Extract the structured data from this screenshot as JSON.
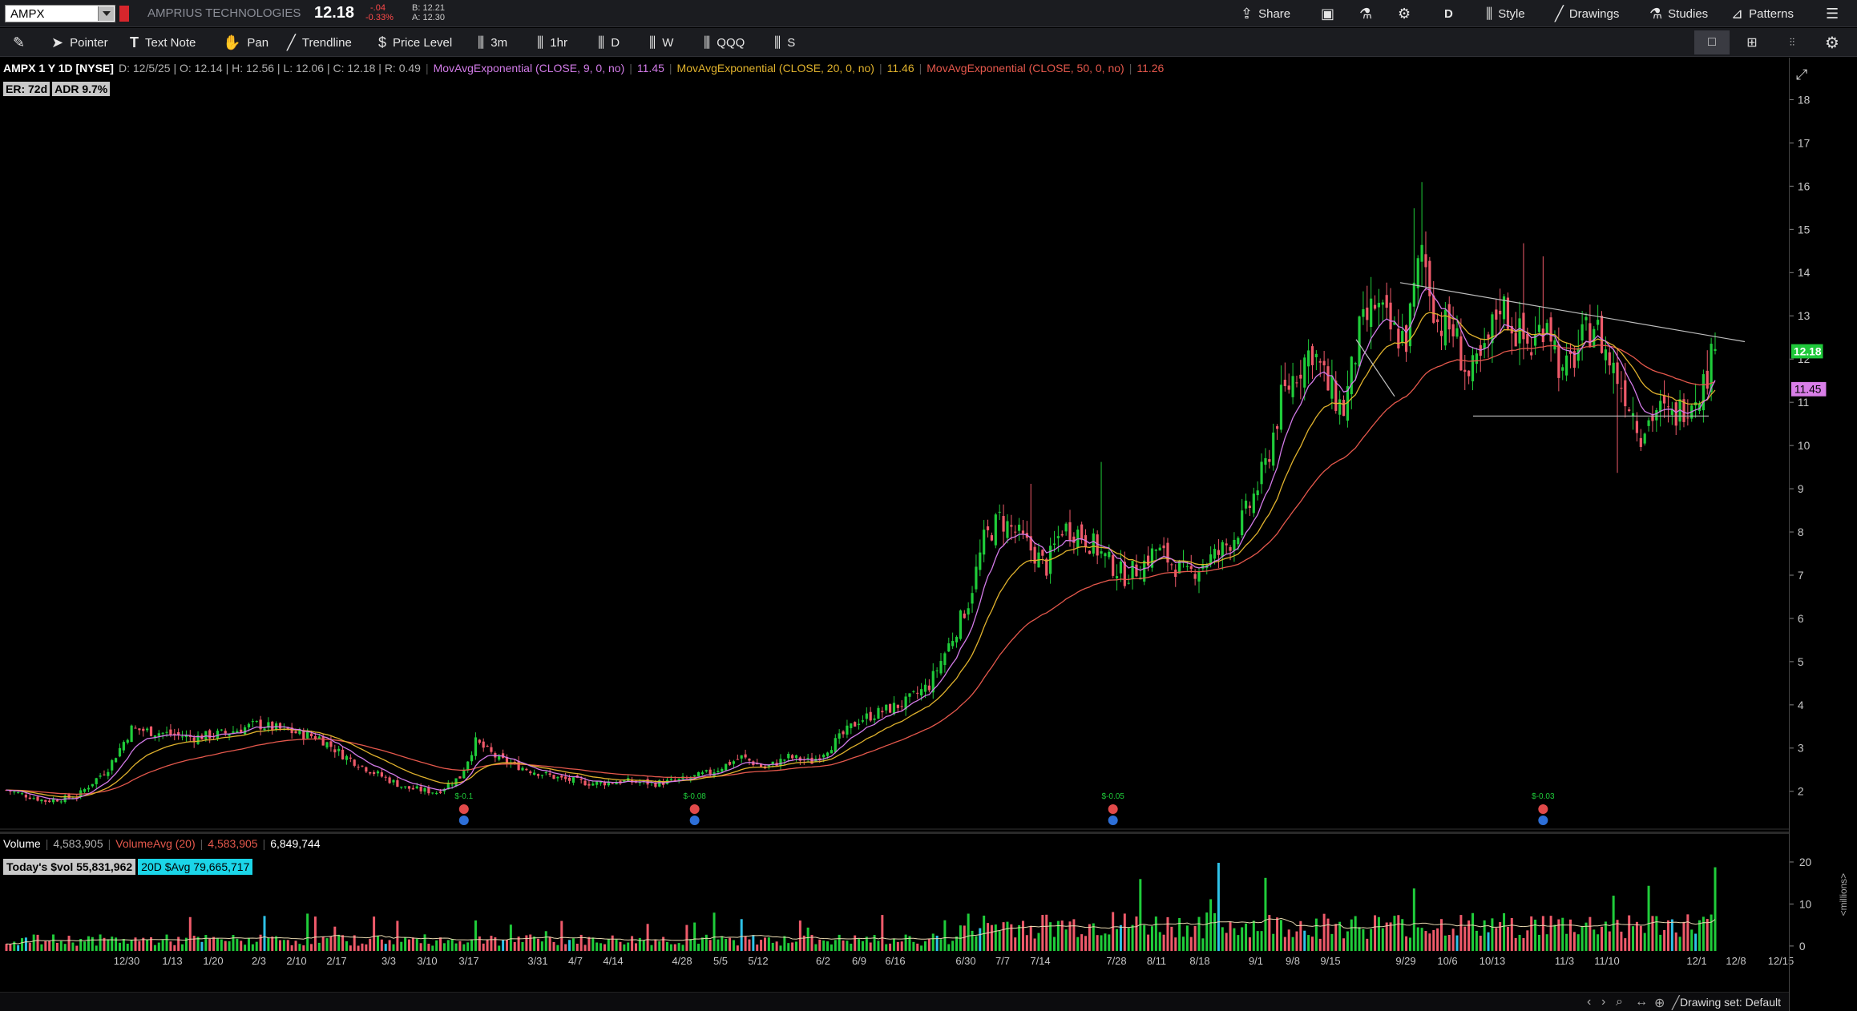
{
  "header": {
    "symbol": "AMPX",
    "company": "AMPRIUS TECHNOLOGIES",
    "last": "12.18",
    "net_change": "-.04",
    "pct_change": "-0.33%",
    "bid": "B: 12.21",
    "ask": "A: 12.30",
    "share_label": "Share",
    "aggregation_label": "D",
    "style_label": "Style",
    "drawings_label": "Drawings",
    "studies_label": "Studies",
    "patterns_label": "Patterns"
  },
  "toolbar": {
    "pointer": "Pointer",
    "text_note": "Text Note",
    "pan": "Pan",
    "trendline": "Trendline",
    "price_level": "Price Level",
    "tf_3m": "3m",
    "tf_1hr": "1hr",
    "tf_d": "D",
    "tf_w": "W",
    "qqq": "QQQ",
    "s": "S"
  },
  "study_header": {
    "symbol_desc": "AMPX 1 Y 1D [NYSE]",
    "ohlc": "D: 12/5/25 | O: 12.14 | H: 12.56 | L: 12.06 | C: 12.18 | R: 0.49",
    "ema9_label": "MovAvgExponential (CLOSE, 9, 0, no)",
    "ema9_value": "11.45",
    "ema20_label": "MovAvgExponential (CLOSE, 20, 0, no)",
    "ema20_value": "11.46",
    "ema50_label": "MovAvgExponential (CLOSE, 50, 0, no)",
    "ema50_value": "11.26",
    "er_label": "ER: 72d",
    "adr_label": "ADR 9.7%"
  },
  "volume_header": {
    "volume_label": "Volume",
    "volume_value": "4,583,905",
    "volavg_label": "VolumeAvg (20)",
    "volavg_value": "4,583,905",
    "volavg_value2": "6,849,744",
    "todays_dollar_vol": "Today's $vol 55,831,962",
    "avg_dollar_vol": "20D $Avg 79,665,717",
    "unit_label": "<millions>"
  },
  "status": {
    "drawing_set": "Drawing set: Default"
  },
  "price_axis": {
    "ticks": [
      "18",
      "17",
      "16",
      "15",
      "14",
      "13",
      "12",
      "11",
      "10",
      "9",
      "8",
      "7",
      "6",
      "5",
      "4",
      "3",
      "2"
    ],
    "last_badge": "12.18",
    "ema_badge": "11.45"
  },
  "volume_axis": {
    "ticks": [
      "20",
      "10",
      "0"
    ]
  },
  "colors": {
    "up": "#1fcc3a",
    "down": "#ef5a6a",
    "ema9": "#d27be8",
    "ema20": "#e0b22d",
    "ema50": "#e5584c",
    "vol_avg": "#e8d8b0",
    "last_badge": "#1fc83a",
    "ema_badge": "#d97ee8"
  },
  "chart_data": {
    "type": "candlestick",
    "y_range": [
      1.5,
      18.5
    ],
    "volume_range": [
      0,
      26
    ],
    "x_labels": [
      "12/30",
      "1/13",
      "1/20",
      "2/3",
      "2/10",
      "2/17",
      "3/3",
      "3/10",
      "3/17",
      "3/31",
      "4/7",
      "4/14",
      "4/28",
      "5/5",
      "5/12",
      "6/2",
      "6/9",
      "6/16",
      "6/30",
      "7/7",
      "7/14",
      "7/28",
      "8/11",
      "8/18",
      "9/1",
      "9/8",
      "9/15",
      "9/29",
      "10/6",
      "10/13",
      "11/3",
      "11/10",
      "12/1",
      "12/8",
      "12/15"
    ],
    "earnings_markers": [
      "$-0.1",
      "$-0.08",
      "$-0.05",
      "$-0.03"
    ]
  }
}
